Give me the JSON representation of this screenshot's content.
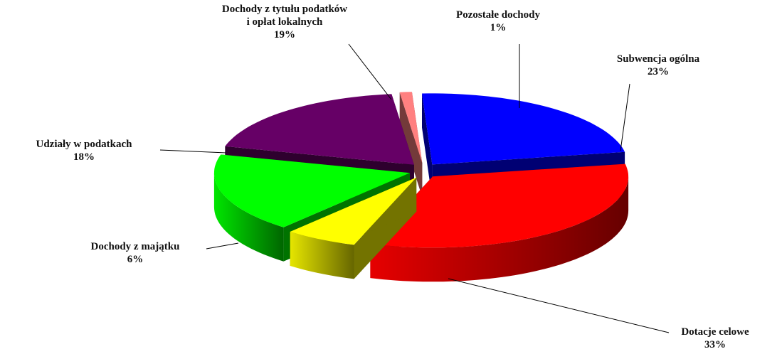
{
  "chart_data": {
    "type": "pie",
    "categories": [
      "Dochody z tytułu podatków i opłat lokalnych",
      "Pozostałe dochody",
      "Subwencja ogólna",
      "Dotacje celowe",
      "Dochody z majątku",
      "Udziały w podatkach"
    ],
    "values": [
      19,
      1,
      23,
      33,
      6,
      18
    ],
    "value_labels": [
      "19%",
      "1%",
      "23%",
      "33%",
      "6%",
      "18%"
    ],
    "colors": [
      "#660066",
      "#ff8080",
      "#0000ff",
      "#ff0000",
      "#ffff00",
      "#00ff00"
    ]
  }
}
